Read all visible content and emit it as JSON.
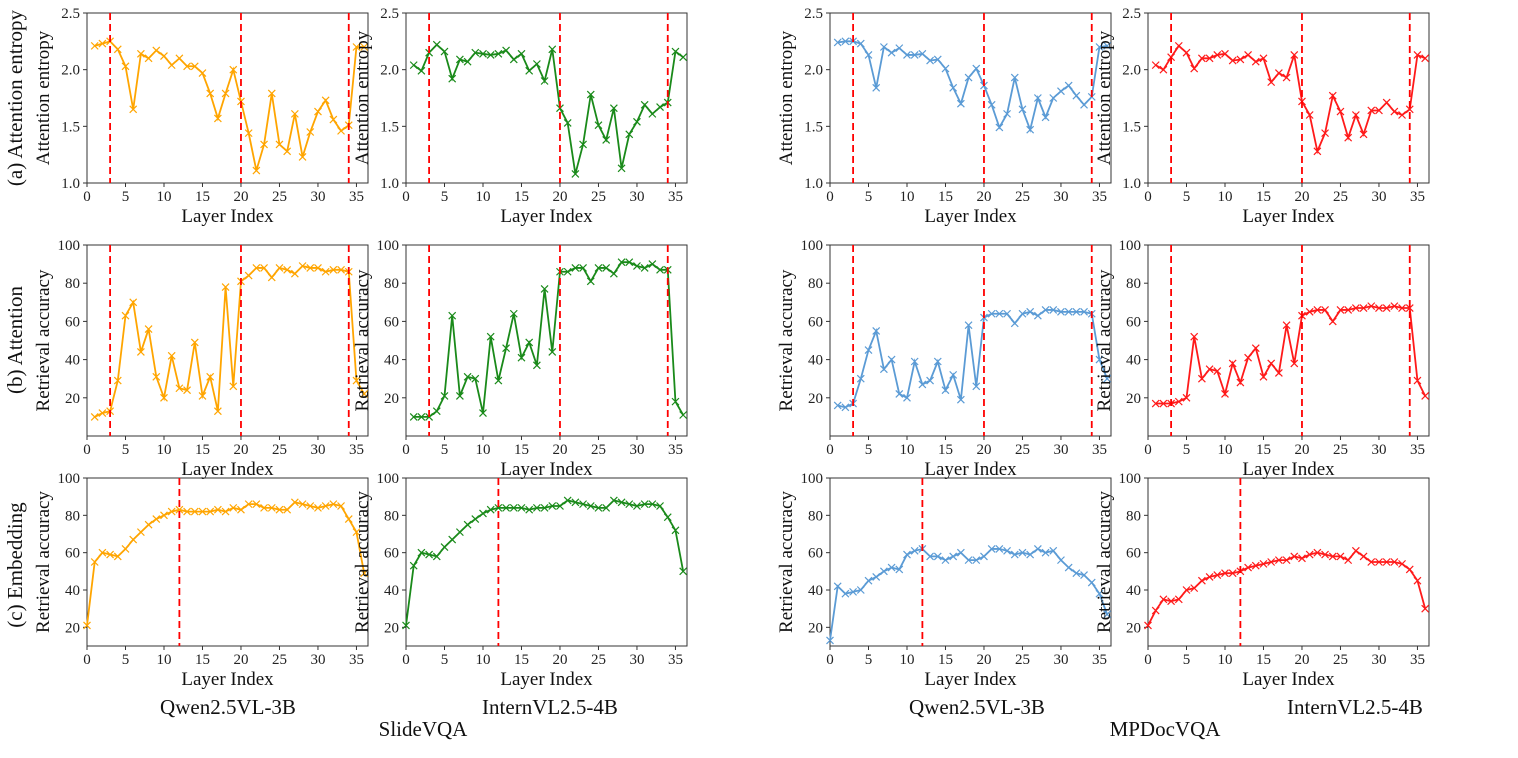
{
  "chart_data": {
    "type": "line",
    "row_labels": [
      [
        "(a) Attention entropy",
        "Attention entropy"
      ],
      [
        "(b) Attention",
        "Retrieval accuracy"
      ],
      [
        "(c) Embedding",
        "Retrieval accuracy"
      ]
    ],
    "xlabel": "Layer Index",
    "model_labels": [
      "Qwen2.5VL-3B",
      "InternVL2.5-4B",
      "Qwen2.5VL-3B",
      "InternVL2.5-4B"
    ],
    "dataset_labels": [
      "SlideVQA",
      "MPDocVQA"
    ],
    "x_ticks": [
      0,
      5,
      10,
      15,
      20,
      25,
      30,
      35
    ],
    "rows": [
      {
        "ylabel": "Attention entropy",
        "ylim": [
          1.0,
          2.5
        ],
        "y_ticks": [
          "1.0",
          "1.5",
          "2.0",
          "2.5"
        ],
        "x_start": 1,
        "vlines": [
          3,
          20,
          34
        ]
      },
      {
        "ylabel": "Retrieval accuracy",
        "ylim": [
          0,
          100
        ],
        "y_ticks": [
          "20",
          "40",
          "60",
          "80",
          "100"
        ],
        "x_start": 1,
        "vlines": [
          3,
          20,
          34
        ]
      },
      {
        "ylabel": "Retrieval accuracy",
        "ylim": [
          10,
          100
        ],
        "y_ticks": [
          "20",
          "40",
          "60",
          "80",
          "100"
        ],
        "x_start": 0,
        "vlines": [
          12
        ]
      }
    ],
    "colors": [
      "#FFA500",
      "#1A8A1A",
      "#5B9BD5",
      "#FF1A1A"
    ],
    "vline_color": "#FF0000",
    "series": [
      [
        [
          2.21,
          2.23,
          2.25,
          2.18,
          2.03,
          1.65,
          2.14,
          2.1,
          2.17,
          2.12,
          2.04,
          2.1,
          2.03,
          2.03,
          1.97,
          1.79,
          1.57,
          1.79,
          2.0,
          1.72,
          1.44,
          1.11,
          1.34,
          1.79,
          1.34,
          1.28,
          1.61,
          1.23,
          1.45,
          1.63,
          1.73,
          1.56,
          1.46,
          1.51,
          2.2,
          2.2
        ],
        [
          2.04,
          1.99,
          2.15,
          2.22,
          2.16,
          1.92,
          2.09,
          2.07,
          2.15,
          2.14,
          2.13,
          2.14,
          2.17,
          2.09,
          2.14,
          1.99,
          2.05,
          1.9,
          2.18,
          1.66,
          1.53,
          1.08,
          1.34,
          1.78,
          1.51,
          1.38,
          1.66,
          1.13,
          1.43,
          1.54,
          1.69,
          1.61,
          1.67,
          1.71,
          2.16,
          2.11
        ],
        [
          2.24,
          2.25,
          2.25,
          2.23,
          2.13,
          1.84,
          2.2,
          2.15,
          2.19,
          2.13,
          2.13,
          2.14,
          2.08,
          2.09,
          2.01,
          1.84,
          1.7,
          1.93,
          2.01,
          1.86,
          1.69,
          1.49,
          1.61,
          1.93,
          1.65,
          1.47,
          1.75,
          1.58,
          1.75,
          1.81,
          1.86,
          1.77,
          1.69,
          1.76,
          2.2,
          2.21
        ],
        [
          2.04,
          2.0,
          2.11,
          2.21,
          2.15,
          2.01,
          2.1,
          2.1,
          2.13,
          2.14,
          2.08,
          2.09,
          2.13,
          2.07,
          2.1,
          1.89,
          1.97,
          1.93,
          2.13,
          1.72,
          1.6,
          1.28,
          1.44,
          1.77,
          1.63,
          1.4,
          1.6,
          1.43,
          1.64,
          1.64,
          1.71,
          1.63,
          1.6,
          1.65,
          2.13,
          2.1
        ]
      ],
      [
        [
          10,
          12,
          13,
          29,
          63,
          70,
          44,
          56,
          31,
          20,
          42,
          25,
          24,
          49,
          21,
          31,
          13,
          78,
          26,
          81,
          84,
          88,
          88,
          83,
          88,
          87,
          85,
          89,
          88,
          88,
          86,
          87,
          87,
          86,
          29,
          22
        ],
        [
          10,
          10,
          10,
          13,
          21,
          63,
          21,
          31,
          30,
          12,
          52,
          29,
          46,
          64,
          41,
          49,
          37,
          77,
          44,
          86,
          86,
          88,
          88,
          81,
          88,
          88,
          85,
          91,
          91,
          89,
          88,
          90,
          87,
          87,
          18,
          11
        ],
        [
          16,
          15,
          17,
          30,
          45,
          55,
          35,
          40,
          22,
          20,
          39,
          27,
          29,
          39,
          24,
          32,
          19,
          58,
          26,
          62,
          64,
          64,
          64,
          59,
          64,
          65,
          63,
          66,
          66,
          65,
          65,
          65,
          65,
          64,
          40,
          30
        ],
        [
          17,
          17,
          17,
          18,
          20,
          52,
          30,
          35,
          34,
          22,
          38,
          28,
          41,
          46,
          31,
          38,
          33,
          58,
          38,
          63,
          65,
          66,
          66,
          60,
          66,
          66,
          67,
          67,
          68,
          67,
          67,
          68,
          67,
          67,
          29,
          21
        ]
      ],
      [
        [
          21,
          55,
          60,
          59,
          58,
          62,
          67,
          71,
          75,
          78,
          80,
          82,
          83,
          82,
          82,
          82,
          82,
          83,
          82,
          84,
          83,
          86,
          86,
          84,
          84,
          83,
          83,
          87,
          86,
          85,
          84,
          85,
          86,
          85,
          78,
          71,
          49
        ],
        [
          21,
          53,
          60,
          59,
          58,
          63,
          67,
          71,
          75,
          78,
          81,
          83,
          84,
          84,
          84,
          84,
          83,
          84,
          84,
          85,
          85,
          88,
          87,
          86,
          85,
          84,
          84,
          88,
          87,
          86,
          85,
          86,
          86,
          85,
          79,
          72,
          50
        ],
        [
          13,
          42,
          38,
          39,
          40,
          45,
          47,
          50,
          52,
          51,
          59,
          61,
          62,
          58,
          58,
          56,
          58,
          60,
          56,
          56,
          58,
          62,
          62,
          61,
          59,
          60,
          59,
          62,
          60,
          61,
          56,
          52,
          49,
          48,
          44,
          38,
          27
        ],
        [
          21,
          29,
          35,
          34,
          35,
          40,
          41,
          45,
          47,
          48,
          49,
          49,
          50,
          52,
          53,
          54,
          55,
          56,
          56,
          58,
          57,
          59,
          60,
          59,
          58,
          58,
          56,
          61,
          58,
          55,
          55,
          55,
          55,
          54,
          51,
          45,
          30
        ]
      ]
    ]
  }
}
